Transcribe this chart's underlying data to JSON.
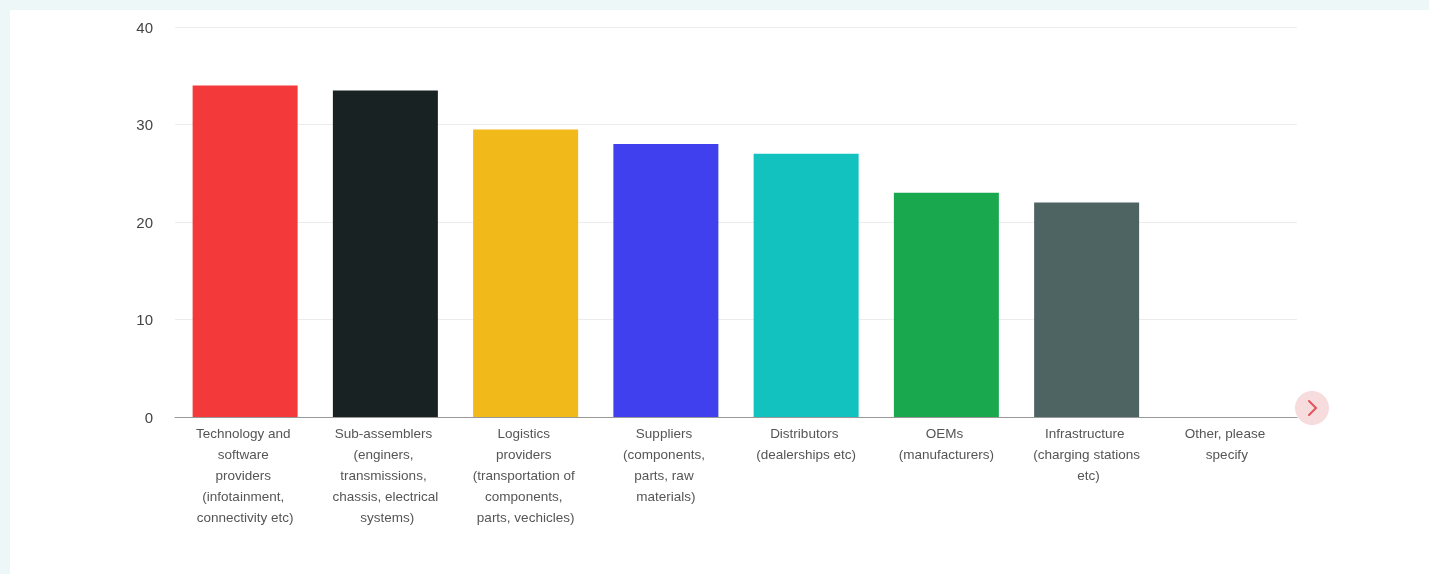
{
  "chart_data": {
    "type": "bar",
    "categories": [
      "Technology and software providers (infotainment, connectivity etc)",
      "Sub-assemblers (enginers, transmissions, chassis, electrical systems)",
      "Logistics providers (transportation of components, parts, vechicles)",
      "Suppliers (components, parts, raw materials)",
      "Distributors (dealerships etc)",
      "OEMs (manufacturers)",
      "Infrastructure (charging stations etc)",
      "Other, please specify"
    ],
    "values": [
      34,
      33.5,
      29.5,
      28,
      27,
      23,
      22,
      0
    ],
    "colors": [
      "#f4393a",
      "#182222",
      "#f2b91a",
      "#4040ef",
      "#12c2bf",
      "#1aa84e",
      "#4d6462",
      "#888888"
    ],
    "ylim": [
      0,
      40
    ],
    "yticks": [
      0,
      10,
      20,
      30,
      40
    ],
    "grid": "y"
  }
}
